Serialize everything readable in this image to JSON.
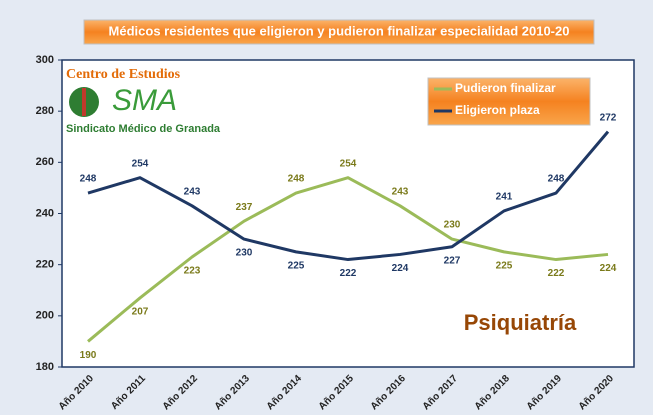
{
  "chart_data": {
    "type": "line",
    "title": "Médicos residentes que eligieron y pudieron finalizar especialidad 2010-20",
    "categories": [
      "Año 2010",
      "Año 2011",
      "Año 2012",
      "Año 2013",
      "Año 2014",
      "Año 2015",
      "Año 2016",
      "Año 2017",
      "Año 2018",
      "Año 2019",
      "Año 2020"
    ],
    "series": [
      {
        "name": "Pudieron finalizar",
        "color": "#9bbb59",
        "values": [
          190,
          207,
          223,
          237,
          248,
          254,
          243,
          230,
          225,
          222,
          224
        ]
      },
      {
        "name": "Eligieron plaza",
        "color": "#1f3864",
        "values": [
          248,
          254,
          243,
          230,
          225,
          222,
          224,
          227,
          241,
          248,
          272
        ]
      }
    ],
    "ylim": [
      180,
      300
    ],
    "yticks": [
      180,
      200,
      220,
      240,
      260,
      280,
      300
    ],
    "logo": {
      "heading": "Centro de Estudios",
      "acronym": "SMA",
      "caption": "Sindicato Médico de Granada"
    },
    "annotation": "Psiquiatría",
    "legend": "top-right"
  }
}
